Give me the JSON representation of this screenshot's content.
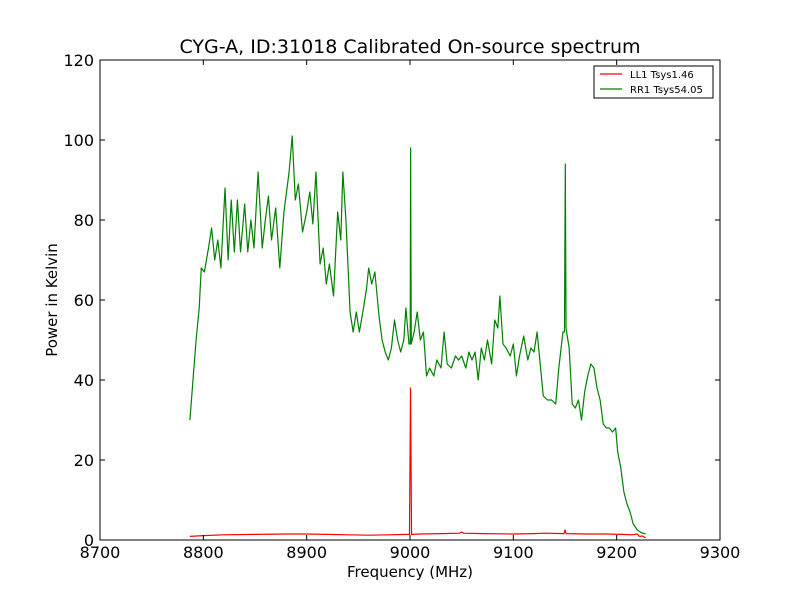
{
  "chart_data": {
    "type": "line",
    "title": "CYG-A, ID:31018 Calibrated On-source spectrum",
    "xlabel": "Frequency (MHz)",
    "ylabel": "Power in Kelvin",
    "xlim": [
      8700,
      9300
    ],
    "ylim": [
      0,
      120
    ],
    "xticks": [
      8700,
      8800,
      8900,
      9000,
      9100,
      9200,
      9300
    ],
    "yticks": [
      0,
      20,
      40,
      60,
      80,
      100,
      120
    ],
    "grid": false,
    "legend_position": "top-right",
    "series": [
      {
        "name": "LL1 Tsys1.46",
        "color": "#ff0000",
        "points": [
          [
            8787,
            0.9
          ],
          [
            8800,
            1.1
          ],
          [
            8820,
            1.3
          ],
          [
            8850,
            1.4
          ],
          [
            8880,
            1.5
          ],
          [
            8900,
            1.5
          ],
          [
            8920,
            1.4
          ],
          [
            8940,
            1.3
          ],
          [
            8960,
            1.2
          ],
          [
            8980,
            1.3
          ],
          [
            8998,
            1.4
          ],
          [
            8999.5,
            1.4
          ],
          [
            9000.5,
            38
          ],
          [
            9001.5,
            1.4
          ],
          [
            9010,
            1.5
          ],
          [
            9030,
            1.6
          ],
          [
            9048,
            1.7
          ],
          [
            9050,
            2.0
          ],
          [
            9052,
            1.7
          ],
          [
            9070,
            1.6
          ],
          [
            9100,
            1.5
          ],
          [
            9120,
            1.6
          ],
          [
            9130,
            1.7
          ],
          [
            9149,
            1.6
          ],
          [
            9150,
            2.5
          ],
          [
            9151,
            1.6
          ],
          [
            9170,
            1.5
          ],
          [
            9190,
            1.5
          ],
          [
            9205,
            1.4
          ],
          [
            9215,
            1.3
          ],
          [
            9220,
            1.5
          ],
          [
            9222,
            0.9
          ],
          [
            9225,
            1.0
          ],
          [
            9228,
            0.5
          ]
        ]
      },
      {
        "name": "RR1 Tsys54.05",
        "color": "#008000",
        "points": [
          [
            8787,
            30
          ],
          [
            8790,
            40
          ],
          [
            8793,
            50
          ],
          [
            8796,
            58
          ],
          [
            8798,
            68
          ],
          [
            8801,
            67
          ],
          [
            8805,
            73
          ],
          [
            8808,
            78
          ],
          [
            8811,
            70
          ],
          [
            8814,
            75
          ],
          [
            8817,
            68
          ],
          [
            8821,
            88
          ],
          [
            8824,
            70
          ],
          [
            8827,
            85
          ],
          [
            8830,
            72
          ],
          [
            8833,
            85
          ],
          [
            8836,
            72
          ],
          [
            8840,
            84
          ],
          [
            8843,
            72
          ],
          [
            8846,
            80
          ],
          [
            8849,
            73
          ],
          [
            8853,
            92
          ],
          [
            8857,
            73
          ],
          [
            8860,
            80
          ],
          [
            8863,
            86
          ],
          [
            8866,
            75
          ],
          [
            8870,
            83
          ],
          [
            8874,
            68
          ],
          [
            8878,
            82
          ],
          [
            8883,
            92
          ],
          [
            8886,
            101
          ],
          [
            8889,
            85
          ],
          [
            8892,
            89
          ],
          [
            8896,
            77
          ],
          [
            8900,
            82
          ],
          [
            8903,
            87
          ],
          [
            8906,
            79
          ],
          [
            8909,
            92
          ],
          [
            8913,
            69
          ],
          [
            8916,
            73
          ],
          [
            8919,
            64
          ],
          [
            8922,
            69
          ],
          [
            8926,
            61
          ],
          [
            8930,
            82
          ],
          [
            8933,
            75
          ],
          [
            8935,
            92
          ],
          [
            8938,
            80
          ],
          [
            8942,
            57
          ],
          [
            8945,
            52
          ],
          [
            8948,
            57
          ],
          [
            8951,
            52
          ],
          [
            8955,
            58
          ],
          [
            8958,
            63
          ],
          [
            8960,
            68
          ],
          [
            8963,
            64
          ],
          [
            8966,
            67
          ],
          [
            8970,
            56
          ],
          [
            8973,
            50
          ],
          [
            8976,
            47
          ],
          [
            8979,
            45
          ],
          [
            8982,
            48
          ],
          [
            8985,
            55
          ],
          [
            8988,
            50
          ],
          [
            8991,
            47
          ],
          [
            8994,
            50
          ],
          [
            8996,
            58
          ],
          [
            8999,
            49
          ],
          [
            9000.2,
            49
          ],
          [
            9000.6,
            98
          ],
          [
            9001.2,
            49
          ],
          [
            9004,
            52
          ],
          [
            9007,
            57
          ],
          [
            9010,
            50
          ],
          [
            9013,
            52
          ],
          [
            9016,
            41
          ],
          [
            9019,
            43
          ],
          [
            9023,
            41
          ],
          [
            9026,
            45
          ],
          [
            9030,
            43
          ],
          [
            9033,
            52
          ],
          [
            9036,
            44
          ],
          [
            9040,
            43
          ],
          [
            9044,
            46
          ],
          [
            9047,
            45
          ],
          [
            9050,
            46
          ],
          [
            9054,
            43
          ],
          [
            9057,
            47
          ],
          [
            9060,
            45
          ],
          [
            9063,
            47
          ],
          [
            9066,
            40
          ],
          [
            9069,
            48
          ],
          [
            9072,
            45
          ],
          [
            9075,
            50
          ],
          [
            9079,
            44
          ],
          [
            9082,
            55
          ],
          [
            9085,
            53
          ],
          [
            9087,
            61
          ],
          [
            9090,
            49
          ],
          [
            9093,
            48
          ],
          [
            9097,
            46
          ],
          [
            9100,
            49
          ],
          [
            9103,
            41
          ],
          [
            9106,
            46
          ],
          [
            9110,
            51
          ],
          [
            9114,
            45
          ],
          [
            9117,
            48
          ],
          [
            9120,
            47
          ],
          [
            9123,
            52
          ],
          [
            9126,
            44
          ],
          [
            9129,
            36
          ],
          [
            9133,
            35
          ],
          [
            9137,
            35
          ],
          [
            9141,
            34
          ],
          [
            9144,
            43
          ],
          [
            9148,
            52
          ],
          [
            9149.5,
            52
          ],
          [
            9150.3,
            94
          ],
          [
            9151,
            53
          ],
          [
            9154,
            48
          ],
          [
            9157,
            34
          ],
          [
            9160,
            33
          ],
          [
            9163,
            35
          ],
          [
            9166,
            30
          ],
          [
            9169,
            37
          ],
          [
            9172,
            41
          ],
          [
            9175,
            44
          ],
          [
            9178,
            43
          ],
          [
            9181,
            38
          ],
          [
            9184,
            35
          ],
          [
            9187,
            29
          ],
          [
            9190,
            28
          ],
          [
            9193,
            28
          ],
          [
            9196,
            27
          ],
          [
            9199,
            28
          ],
          [
            9201,
            22
          ],
          [
            9204,
            18
          ],
          [
            9207,
            12
          ],
          [
            9210,
            9
          ],
          [
            9213,
            7
          ],
          [
            9216,
            4
          ],
          [
            9220,
            2.5
          ],
          [
            9224,
            1.8
          ],
          [
            9228,
            1.5
          ]
        ]
      }
    ]
  }
}
